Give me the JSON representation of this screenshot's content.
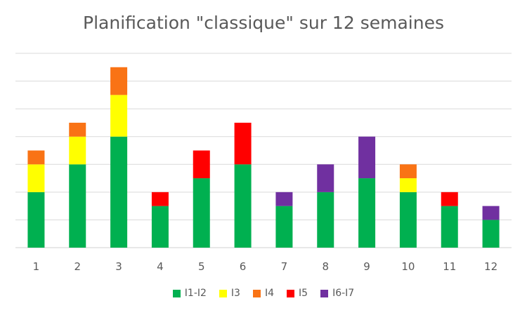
{
  "chart_data": {
    "type": "bar",
    "stacked": true,
    "title": "Planification \"classique\" sur 12 semaines",
    "xlabel": "",
    "ylabel": "",
    "ylim": [
      0,
      14
    ],
    "grid": true,
    "legend_position": "bottom",
    "categories": [
      "1",
      "2",
      "3",
      "4",
      "5",
      "6",
      "7",
      "8",
      "9",
      "10",
      "11",
      "12"
    ],
    "series": [
      {
        "name": "I1-I2",
        "color": "#00B050",
        "values": [
          4,
          6,
          8,
          3,
          5,
          6,
          3,
          4,
          5,
          4,
          3,
          2
        ]
      },
      {
        "name": "I3",
        "color": "#FFFF00",
        "values": [
          2,
          2,
          3,
          0,
          0,
          0,
          0,
          0,
          0,
          1,
          0,
          0
        ]
      },
      {
        "name": "I4",
        "color": "#F97315",
        "values": [
          1,
          1,
          2,
          0,
          0,
          0,
          0,
          0,
          0,
          1,
          0,
          0
        ]
      },
      {
        "name": "I5",
        "color": "#FF0000",
        "values": [
          0,
          0,
          0,
          1,
          2,
          3,
          0,
          0,
          0,
          0,
          1,
          0
        ]
      },
      {
        "name": "I6-I7",
        "color": "#7030A0",
        "values": [
          0,
          0,
          0,
          0,
          0,
          0,
          1,
          2,
          3,
          0,
          0,
          1
        ]
      }
    ]
  }
}
